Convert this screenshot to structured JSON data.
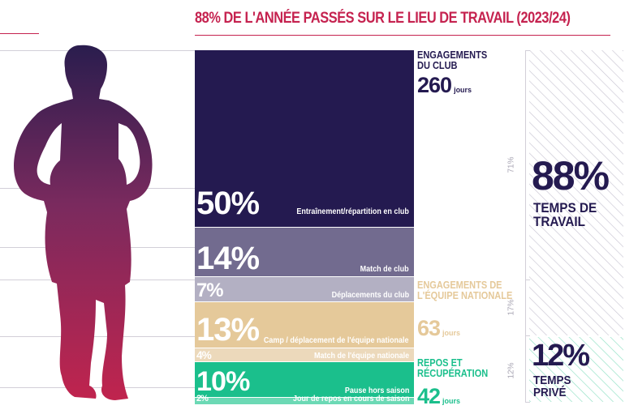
{
  "title": "88% DE L'ANNÉE PASSÉS SUR LE LIEU DE TRAVAIL (2023/24)",
  "colors": {
    "accent": "#c5224f",
    "club_dark": "#241a50",
    "club_mid": "#726b8f",
    "club_light": "#b3b0c3",
    "national_mid": "#e5c99a",
    "national_light": "#ecd9bb",
    "rest_mid": "#1bbf8c",
    "rest_light": "#6cd9b5"
  },
  "groups": [
    {
      "title_line1": "ENGAGEMENTS",
      "title_line2": "DU CLUB",
      "days": "260",
      "unit": "jours"
    },
    {
      "title_line1": "ENGAGEMENTS DE",
      "title_line2": "L'ÉQUIPE NATIONALE",
      "days": "63",
      "unit": "jours"
    },
    {
      "title_line1": "REPOS ET",
      "title_line2": "RÉCUPÉRATION",
      "days": "42",
      "unit": "jours"
    }
  ],
  "summary": {
    "work": {
      "value": "88%",
      "line1": "TEMPS DE",
      "line2": "TRAVAIL"
    },
    "private": {
      "value": "12%",
      "line1": "TEMPS",
      "line2": "PRIVÉ"
    },
    "brackets": [
      "71%",
      "17%",
      "12%"
    ]
  },
  "chart_data": {
    "type": "bar",
    "title": "88% DE L'ANNÉE PASSÉS SUR LE LIEU DE TRAVAIL (2023/24)",
    "stacked": true,
    "categories": [
      "Entraînement/répartition en club",
      "Match de club",
      "Déplacements du club",
      "Camp / déplacement de l'équipe nationale",
      "Match de l'équipe nationale",
      "Pause hors saison",
      "Jour de repos en cours de saison"
    ],
    "values": [
      50,
      14,
      7,
      13,
      4,
      10,
      2
    ],
    "value_labels": [
      "50%",
      "14%",
      "7%",
      "13%",
      "4%",
      "10%",
      "2%"
    ],
    "group": [
      "ENGAGEMENTS DU CLUB",
      "ENGAGEMENTS DU CLUB",
      "ENGAGEMENTS DU CLUB",
      "ENGAGEMENTS DE L'ÉQUIPE NATIONALE",
      "ENGAGEMENTS DE L'ÉQUIPE NATIONALE",
      "REPOS ET RÉCUPÉRATION",
      "REPOS ET RÉCUPÉRATION"
    ],
    "segment_colors": [
      "#241a50",
      "#726b8f",
      "#b3b0c3",
      "#e5c99a",
      "#ecd9bb",
      "#1bbf8c",
      "#6cd9b5"
    ]
  }
}
